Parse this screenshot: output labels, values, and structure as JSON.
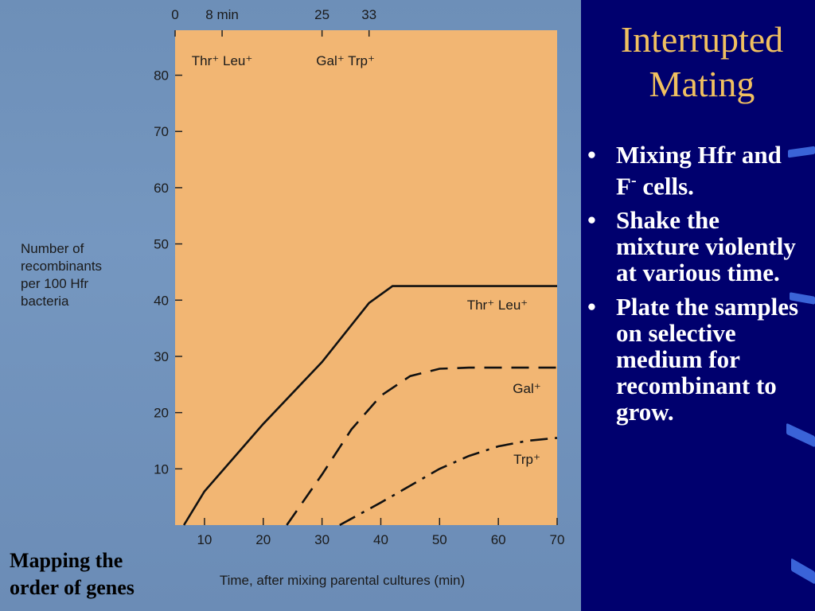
{
  "slide": {
    "title_line1": "Interrupted",
    "title_line2": "Mating",
    "bullets": [
      {
        "text": "Mixing Hfr and F",
        "sup": "-",
        "tail": " cells."
      },
      {
        "text": "Shake the mixture violently at various time.",
        "sup": "",
        "tail": ""
      },
      {
        "text": "Plate the samples on selective medium for recombinant to grow.",
        "sup": "",
        "tail": ""
      }
    ],
    "caption_line1": "Mapping the",
    "caption_line2": "order of genes"
  },
  "colors": {
    "plot_bg": "#f2b673",
    "right_panel": "#00006e",
    "title": "#f0c060",
    "bullet_text": "#ffffff"
  },
  "chart_data": {
    "type": "line",
    "xlabel": "Time, after mixing parental cultures (min)",
    "ylabel": "Number of recombinants per 100 Hfr bacteria",
    "ylabel_lines": [
      "Number of",
      "recombinants",
      "per 100 Hfr",
      "bacteria"
    ],
    "xlim": [
      5,
      70
    ],
    "ylim": [
      0,
      88
    ],
    "xticks": [
      10,
      20,
      30,
      40,
      50,
      60,
      70
    ],
    "yticks": [
      10,
      20,
      30,
      40,
      50,
      60,
      70,
      80
    ],
    "top_axis": {
      "ticks": [
        {
          "value": 0,
          "label": "0"
        },
        {
          "value": 8,
          "label": "8 min"
        },
        {
          "value": 25,
          "label": "25"
        },
        {
          "value": 33,
          "label": "33"
        }
      ],
      "gene_labels": [
        {
          "at": 8,
          "text": "Thr⁺ Leu⁺"
        },
        {
          "at": 29,
          "text": "Gal⁺ Trp⁺"
        }
      ]
    },
    "series": [
      {
        "name": "Thr⁺ Leu⁺",
        "style": "solid",
        "points": [
          [
            6.5,
            0
          ],
          [
            10,
            6
          ],
          [
            20,
            18
          ],
          [
            30,
            29
          ],
          [
            38,
            39.5
          ],
          [
            42,
            42.5
          ],
          [
            70,
            42.5
          ]
        ]
      },
      {
        "name": "Gal⁺",
        "style": "dashed",
        "points": [
          [
            24,
            0
          ],
          [
            30,
            9
          ],
          [
            35,
            17
          ],
          [
            40,
            23
          ],
          [
            45,
            26.5
          ],
          [
            50,
            27.8
          ],
          [
            55,
            28
          ],
          [
            70,
            28
          ]
        ]
      },
      {
        "name": "Trp⁺",
        "style": "dashdot",
        "points": [
          [
            33,
            0
          ],
          [
            40,
            4
          ],
          [
            45,
            7
          ],
          [
            50,
            10
          ],
          [
            55,
            12.3
          ],
          [
            60,
            14
          ],
          [
            65,
            15
          ],
          [
            70,
            15.5
          ]
        ]
      }
    ]
  }
}
